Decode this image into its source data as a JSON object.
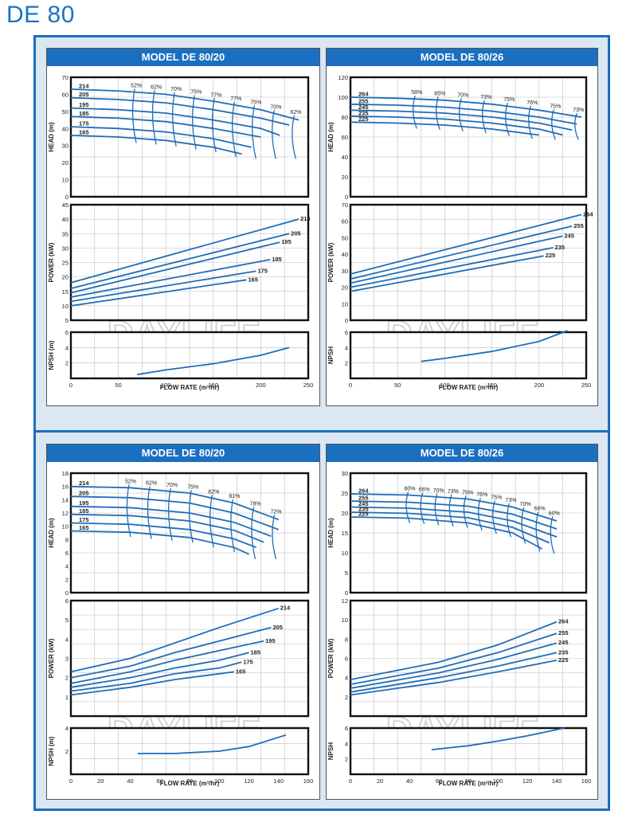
{
  "page_title": "DE 80",
  "watermark": "DAYLIFE",
  "colors": {
    "frame": "#1a6fc0",
    "header": "#1a6fc0",
    "curve": "#1f6db8",
    "grid": "#bdbdbd",
    "background": "#dbe7f3"
  },
  "chart_data": [
    {
      "type": "line",
      "title": "MODEL DE 80/20",
      "xlabel": "FLOW RATE (m³/hr)",
      "x_ticks": [
        "0",
        "50",
        "100",
        "150",
        "200",
        "250"
      ],
      "xlim": [
        0,
        250
      ],
      "head": {
        "ylabel": "HEAD (m)",
        "ylim": [
          0,
          70
        ],
        "y_ticks": [
          "0",
          "10",
          "20",
          "30",
          "40",
          "50",
          "60",
          "70"
        ],
        "series": [
          {
            "name": "214",
            "x": [
              0,
              50,
              100,
              150,
              200,
              240
            ],
            "y": [
              63,
              62,
              60,
              56,
              51,
              45
            ]
          },
          {
            "name": "205",
            "x": [
              0,
              50,
              100,
              150,
              200,
              230
            ],
            "y": [
              58,
              57,
              55,
              51,
              46,
              42
            ]
          },
          {
            "name": "195",
            "x": [
              0,
              50,
              100,
              150,
              200,
              220
            ],
            "y": [
              52,
              51,
              49,
              45,
              40,
              36
            ]
          },
          {
            "name": "185",
            "x": [
              0,
              50,
              100,
              150,
              200
            ],
            "y": [
              47,
              46,
              44,
              40,
              35
            ]
          },
          {
            "name": "175",
            "x": [
              0,
              50,
              100,
              150,
              190
            ],
            "y": [
              41,
              40,
              38,
              34,
              29
            ]
          },
          {
            "name": "165",
            "x": [
              0,
              50,
              100,
              150,
              180
            ],
            "y": [
              36,
              35,
              33,
              29,
              25
            ]
          }
        ],
        "efficiency_labels": [
          "52%",
          "62%",
          "70%",
          "75%",
          "77%",
          "77%",
          "75%",
          "70%",
          "62%"
        ]
      },
      "power": {
        "ylabel": "POWER (kW)",
        "ylim": [
          5,
          45
        ],
        "y_ticks": [
          "5",
          "10",
          "15",
          "20",
          "25",
          "30",
          "35",
          "40",
          "45"
        ],
        "series": [
          {
            "name": "214",
            "x": [
              0,
              240
            ],
            "y": [
              18,
              40
            ]
          },
          {
            "name": "205",
            "x": [
              0,
              230
            ],
            "y": [
              16,
              35
            ]
          },
          {
            "name": "195",
            "x": [
              0,
              220
            ],
            "y": [
              14.5,
              32
            ]
          },
          {
            "name": "185",
            "x": [
              0,
              210
            ],
            "y": [
              13,
              26
            ]
          },
          {
            "name": "175",
            "x": [
              0,
              195
            ],
            "y": [
              11.5,
              22
            ]
          },
          {
            "name": "165",
            "x": [
              0,
              185
            ],
            "y": [
              10,
              19
            ]
          }
        ]
      },
      "npsh": {
        "ylabel": "NPSH (m)",
        "ylim": [
          0,
          6
        ],
        "y_ticks": [
          "2",
          "4",
          "6"
        ],
        "series": [
          {
            "name": "",
            "x": [
              70,
              100,
              150,
              200,
              230
            ],
            "y": [
              0.5,
              1.1,
              1.9,
              3.0,
              4.0
            ]
          }
        ]
      }
    },
    {
      "type": "line",
      "title": "MODEL DE 80/26",
      "xlabel": "FLOW RATE (m³/hr)",
      "x_ticks": [
        "0",
        "50",
        "100",
        "150",
        "200",
        "250"
      ],
      "xlim": [
        0,
        250
      ],
      "head": {
        "ylabel": "HEAD (m)",
        "ylim": [
          0,
          120
        ],
        "y_ticks": [
          "0",
          "20",
          "40",
          "60",
          "80",
          "100",
          "120"
        ],
        "series": [
          {
            "name": "264",
            "x": [
              0,
              50,
              100,
              150,
              200,
              245
            ],
            "y": [
              100,
              99,
              97,
              93,
              87,
              80
            ]
          },
          {
            "name": "255",
            "x": [
              0,
              50,
              100,
              150,
              200,
              240
            ],
            "y": [
              93,
              92,
              90,
              86,
              80,
              73
            ]
          },
          {
            "name": "245",
            "x": [
              0,
              50,
              100,
              150,
              200,
              235
            ],
            "y": [
              87,
              86,
              84,
              80,
              74,
              67
            ]
          },
          {
            "name": "235",
            "x": [
              0,
              50,
              100,
              150,
              200,
              225
            ],
            "y": [
              81,
              80,
              78,
              74,
              68,
              62
            ]
          },
          {
            "name": "225",
            "x": [
              0,
              50,
              100,
              150,
              200
            ],
            "y": [
              75,
              74,
              72,
              68,
              62
            ]
          }
        ],
        "efficiency_labels": [
          "58%",
          "65%",
          "70%",
          "73%",
          "75%",
          "76%",
          "75%",
          "73%"
        ]
      },
      "power": {
        "ylabel": "POWER (kW)",
        "ylim": [
          0,
          70
        ],
        "y_ticks": [
          "0",
          "10",
          "20",
          "30",
          "40",
          "50",
          "60",
          "70"
        ],
        "series": [
          {
            "name": "264",
            "x": [
              0,
              245
            ],
            "y": [
              28,
              64
            ]
          },
          {
            "name": "255",
            "x": [
              0,
              235
            ],
            "y": [
              25,
              57
            ]
          },
          {
            "name": "245",
            "x": [
              0,
              225
            ],
            "y": [
              22.5,
              51
            ]
          },
          {
            "name": "235",
            "x": [
              0,
              215
            ],
            "y": [
              20,
              44
            ]
          },
          {
            "name": "225",
            "x": [
              0,
              205
            ],
            "y": [
              17.5,
              39
            ]
          }
        ]
      },
      "npsh": {
        "ylabel": "NPSH",
        "ylim": [
          0,
          6
        ],
        "y_ticks": [
          "2",
          "4",
          "6"
        ],
        "series": [
          {
            "name": "",
            "x": [
              75,
              100,
              150,
              200,
              230
            ],
            "y": [
              2.2,
              2.6,
              3.5,
              4.8,
              6.2
            ]
          }
        ]
      }
    },
    {
      "type": "line",
      "title": "MODEL DE 80/20",
      "xlabel": "FLOW RATE (m³/hr)",
      "x_ticks": [
        "0",
        "20",
        "40",
        "60",
        "80",
        "100",
        "120",
        "140",
        "160"
      ],
      "xlim": [
        0,
        160
      ],
      "head": {
        "ylabel": "HEAD (m)",
        "ylim": [
          0,
          18
        ],
        "y_ticks": [
          "0",
          "2",
          "4",
          "6",
          "8",
          "10",
          "12",
          "14",
          "16",
          "18"
        ],
        "series": [
          {
            "name": "214",
            "x": [
              0,
              40,
              80,
              110,
              140
            ],
            "y": [
              16,
              15.8,
              15,
              13.5,
              11
            ]
          },
          {
            "name": "205",
            "x": [
              0,
              40,
              80,
              110,
              140
            ],
            "y": [
              14.5,
              14.3,
              13.5,
              12,
              9.5
            ]
          },
          {
            "name": "195",
            "x": [
              0,
              40,
              80,
              110,
              135
            ],
            "y": [
              13,
              12.8,
              12,
              10.6,
              8.5
            ]
          },
          {
            "name": "185",
            "x": [
              0,
              40,
              80,
              110,
              130
            ],
            "y": [
              11.8,
              11.6,
              10.8,
              9.4,
              7.6
            ]
          },
          {
            "name": "175",
            "x": [
              0,
              40,
              80,
              110,
              125
            ],
            "y": [
              10.5,
              10.3,
              9.5,
              8.1,
              6.8
            ]
          },
          {
            "name": "165",
            "x": [
              0,
              40,
              80,
              110,
              120
            ],
            "y": [
              9.3,
              9.1,
              8.3,
              6.8,
              5.8
            ]
          }
        ],
        "efficiency_labels": [
          "52%",
          "62%",
          "70%",
          "75%",
          "82%",
          "81%",
          "78%",
          "72%"
        ]
      },
      "power": {
        "ylabel": "POWER (kW)",
        "ylim": [
          0,
          6
        ],
        "y_ticks": [
          "1",
          "2",
          "3",
          "4",
          "5",
          "6"
        ],
        "series": [
          {
            "name": "214",
            "x": [
              0,
              40,
              70,
              100,
              140
            ],
            "y": [
              2.3,
              3.0,
              3.8,
              4.6,
              5.6
            ]
          },
          {
            "name": "205",
            "x": [
              0,
              40,
              70,
              100,
              135
            ],
            "y": [
              2.0,
              2.6,
              3.3,
              3.9,
              4.6
            ]
          },
          {
            "name": "195",
            "x": [
              0,
              40,
              70,
              100,
              130
            ],
            "y": [
              1.7,
              2.3,
              2.9,
              3.4,
              3.9
            ]
          },
          {
            "name": "185",
            "x": [
              0,
              40,
              70,
              100,
              120
            ],
            "y": [
              1.5,
              2.0,
              2.5,
              2.9,
              3.3
            ]
          },
          {
            "name": "175",
            "x": [
              0,
              40,
              70,
              100,
              115
            ],
            "y": [
              1.3,
              1.7,
              2.2,
              2.5,
              2.8
            ]
          },
          {
            "name": "165",
            "x": [
              0,
              40,
              70,
              100,
              110
            ],
            "y": [
              1.1,
              1.5,
              1.9,
              2.2,
              2.3
            ]
          }
        ]
      },
      "npsh": {
        "ylabel": "NPSH (m)",
        "ylim": [
          0,
          4
        ],
        "y_ticks": [
          "2",
          "4"
        ],
        "series": [
          {
            "name": "",
            "x": [
              45,
              70,
              100,
              120,
              145
            ],
            "y": [
              1.8,
              1.8,
              2.0,
              2.4,
              3.4
            ]
          }
        ]
      }
    },
    {
      "type": "line",
      "title": "MODEL DE 80/26",
      "xlabel": "FLOW RATE (m³/hr)",
      "x_ticks": [
        "0",
        "20",
        "40",
        "60",
        "80",
        "100",
        "120",
        "140",
        "160"
      ],
      "xlim": [
        0,
        160
      ],
      "head": {
        "ylabel": "HEAD (m)",
        "ylim": [
          0,
          30
        ],
        "y_ticks": [
          "0",
          "5",
          "10",
          "15",
          "20",
          "25",
          "30"
        ],
        "series": [
          {
            "name": "264",
            "x": [
              0,
              40,
              80,
              110,
              140
            ],
            "y": [
              24.8,
              24.5,
              23.5,
              21.5,
              18
            ]
          },
          {
            "name": "255",
            "x": [
              0,
              40,
              80,
              110,
              140
            ],
            "y": [
              23,
              22.7,
              21.7,
              19.7,
              16
            ]
          },
          {
            "name": "245",
            "x": [
              0,
              40,
              80,
              110,
              140
            ],
            "y": [
              21.5,
              21.2,
              20.2,
              18,
              14
            ]
          },
          {
            "name": "235",
            "x": [
              0,
              40,
              80,
              110,
              135
            ],
            "y": [
              20.2,
              19.9,
              18.8,
              16.4,
              12.5
            ]
          },
          {
            "name": "225",
            "x": [
              0,
              40,
              80,
              110,
              130
            ],
            "y": [
              19,
              18.7,
              17.5,
              15,
              11
            ]
          }
        ],
        "efficiency_labels": [
          "60%",
          "66%",
          "70%",
          "73%",
          "75%",
          "76%",
          "75%",
          "73%",
          "70%",
          "66%",
          "60%"
        ]
      },
      "power": {
        "ylabel": "POWER (kW)",
        "ylim": [
          0,
          12
        ],
        "y_ticks": [
          "2",
          "4",
          "6",
          "8",
          "10",
          "12"
        ],
        "series": [
          {
            "name": "264",
            "x": [
              0,
              60,
              100,
              140
            ],
            "y": [
              3.8,
              5.6,
              7.4,
              9.8
            ]
          },
          {
            "name": "255",
            "x": [
              0,
              60,
              100,
              140
            ],
            "y": [
              3.3,
              5.0,
              6.6,
              8.6
            ]
          },
          {
            "name": "245",
            "x": [
              0,
              60,
              100,
              140
            ],
            "y": [
              2.9,
              4.5,
              5.9,
              7.6
            ]
          },
          {
            "name": "235",
            "x": [
              0,
              60,
              100,
              140
            ],
            "y": [
              2.5,
              4.0,
              5.2,
              6.6
            ]
          },
          {
            "name": "225",
            "x": [
              0,
              60,
              100,
              140
            ],
            "y": [
              2.2,
              3.5,
              4.6,
              5.8
            ]
          }
        ]
      },
      "npsh": {
        "ylabel": "NPSH",
        "ylim": [
          0,
          6
        ],
        "y_ticks": [
          "2",
          "4",
          "6"
        ],
        "series": [
          {
            "name": "",
            "x": [
              55,
              80,
              100,
              120,
              145
            ],
            "y": [
              3.2,
              3.7,
              4.3,
              5.0,
              6.0
            ]
          }
        ]
      }
    }
  ]
}
